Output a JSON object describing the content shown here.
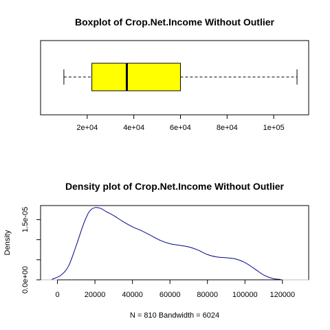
{
  "chart_data": [
    {
      "type": "boxplot",
      "title": "Boxplot of Crop.Net.Income Without Outlier",
      "orientation": "horizontal",
      "box_color": "#ffff00",
      "stats": {
        "min": 10000,
        "q1": 22000,
        "median": 37000,
        "q3": 60000,
        "max": 110000
      },
      "xlim": [
        0,
        115000
      ],
      "x_ticks": [
        20000,
        40000,
        60000,
        80000,
        100000
      ],
      "x_tick_labels": [
        "2e+04",
        "4e+04",
        "6e+04",
        "8e+04",
        "1e+05"
      ]
    },
    {
      "type": "line",
      "title": "Density plot of Crop.Net.Income Without Outlier",
      "xlabel": "N = 810   Bandwidth = 6024",
      "ylabel": "Density",
      "line_color": "#00008b",
      "xlim": [
        -9000,
        134000
      ],
      "ylim": [
        0,
        1.85e-05
      ],
      "x_ticks": [
        0,
        20000,
        40000,
        60000,
        80000,
        100000,
        120000
      ],
      "x_tick_labels": [
        "0",
        "20000",
        "40000",
        "60000",
        "80000",
        "100000",
        "120000"
      ],
      "y_ticks": [
        0,
        5e-06,
        1e-05,
        1.5e-05
      ],
      "y_tick_labels": [
        "0.0e+00",
        "",
        "",
        "1.5e-05"
      ],
      "x": [
        -3000,
        2000,
        6000,
        10000,
        14000,
        17000,
        20000,
        23000,
        26000,
        30000,
        35000,
        40000,
        45000,
        50000,
        55000,
        60000,
        65000,
        70000,
        75000,
        80000,
        85000,
        90000,
        95000,
        100000,
        105000,
        110000,
        115000,
        119000
      ],
      "y": [
        1e-07,
        1.2e-06,
        3.5e-06,
        8.5e-06,
        1.4e-05,
        1.7e-05,
        1.8e-05,
        1.78e-05,
        1.7e-05,
        1.6e-05,
        1.45e-05,
        1.32e-05,
        1.22e-05,
        1.1e-05,
        9.8e-06,
        9e-06,
        8.6e-06,
        8.2e-06,
        7.4e-06,
        6.3e-06,
        5.7e-06,
        5.5e-06,
        5.2e-06,
        4.3e-06,
        2.8e-06,
        1.2e-06,
        3e-07,
        1e-07
      ]
    }
  ]
}
